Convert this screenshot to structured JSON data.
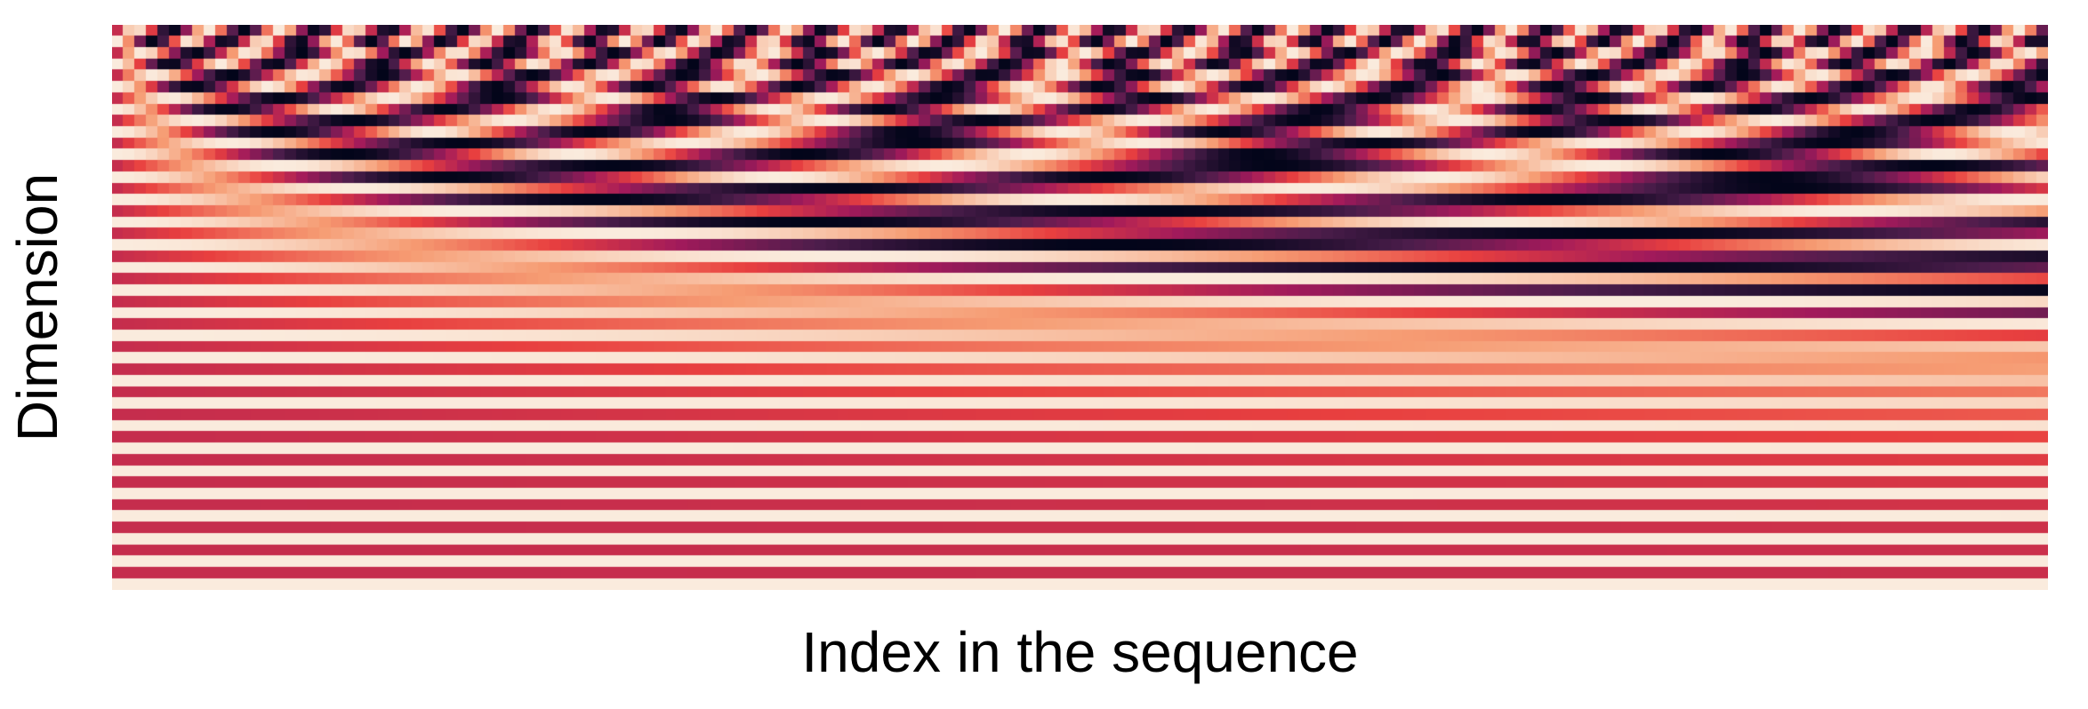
{
  "chart_data": {
    "type": "heatmap",
    "title": "",
    "xlabel": "Index in the sequence",
    "ylabel": "Dimension",
    "encoding": "sinusoidal positional encoding",
    "rows": 50,
    "columns": 168,
    "colormap": [
      "#03051a",
      "#4c1d4b",
      "#a11a5b",
      "#e83f3f",
      "#f69c73",
      "#faebdd"
    ],
    "ticks": "none",
    "grid": false,
    "legend": "none"
  }
}
